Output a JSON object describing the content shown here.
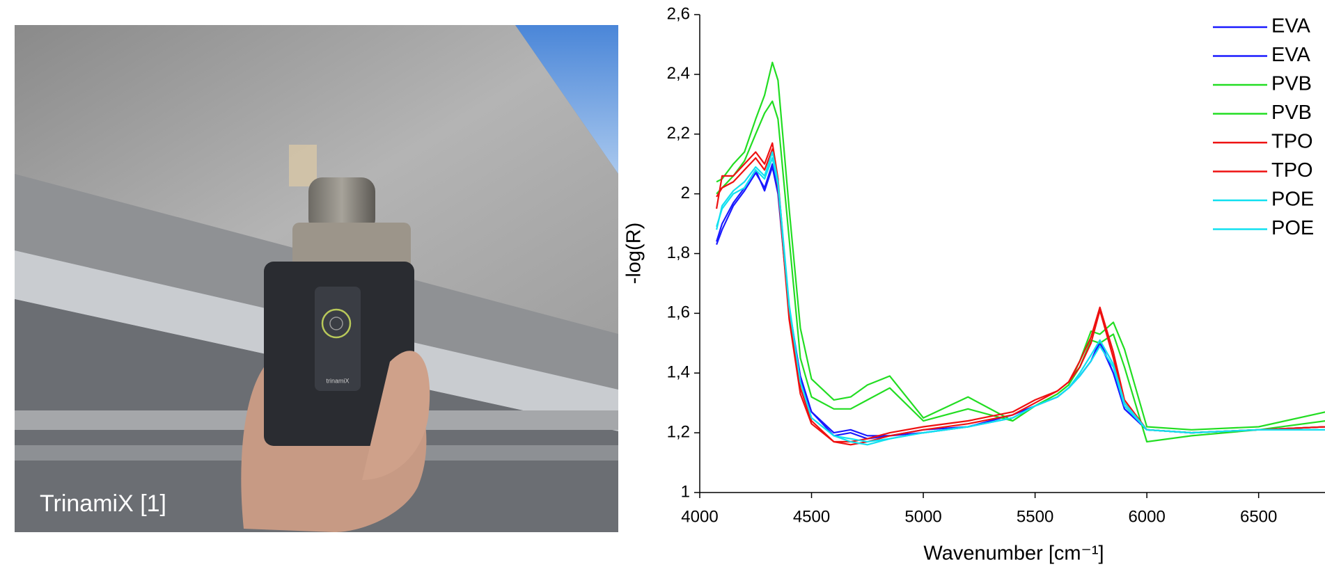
{
  "photo": {
    "caption": "TrinamiX [1]",
    "device_text": "trinamiX"
  },
  "chart_data": {
    "type": "line",
    "x_label": "Wavenumber [cm⁻¹]",
    "y_label": "-log(R)",
    "x": [
      4075,
      4100,
      4150,
      4200,
      4250,
      4290,
      4325,
      4350,
      4400,
      4450,
      4500,
      4600,
      4675,
      4750,
      4850,
      5000,
      5200,
      5400,
      5500,
      5600,
      5650,
      5700,
      5750,
      5790,
      5850,
      5900,
      6000,
      6200,
      6500,
      6800
    ],
    "xlim": [
      4000,
      6800
    ],
    "xticks": [
      4000,
      4500,
      5000,
      5500,
      6000,
      6500
    ],
    "ylim": [
      1,
      2.6
    ],
    "yticks": [
      1,
      {
        "value": 1.2,
        "label": "1,2"
      },
      {
        "value": 1.4,
        "label": "1,4"
      },
      {
        "value": 1.6,
        "label": "1,6"
      },
      {
        "value": 1.8,
        "label": "1,8"
      },
      2,
      {
        "value": 2.2,
        "label": "2,2"
      },
      {
        "value": 2.4,
        "label": "2,4"
      },
      {
        "value": 2.6,
        "label": "2,6"
      }
    ],
    "series": [
      {
        "name": "EVA",
        "color": "#1a1aff",
        "values": [
          1.84,
          1.9,
          1.97,
          2.02,
          2.08,
          2.01,
          2.09,
          2.0,
          1.6,
          1.38,
          1.27,
          1.2,
          1.21,
          1.19,
          1.19,
          1.2,
          1.22,
          1.25,
          1.29,
          1.32,
          1.35,
          1.39,
          1.44,
          1.5,
          1.4,
          1.28,
          1.21,
          1.2,
          1.21,
          1.22
        ]
      },
      {
        "name": "EVA",
        "color": "#1a1aff",
        "values": [
          1.83,
          1.88,
          1.96,
          2.01,
          2.07,
          2.02,
          2.1,
          2.02,
          1.62,
          1.39,
          1.27,
          1.19,
          1.2,
          1.18,
          1.19,
          1.21,
          1.22,
          1.26,
          1.29,
          1.32,
          1.35,
          1.39,
          1.44,
          1.51,
          1.4,
          1.28,
          1.21,
          1.2,
          1.21,
          1.22
        ]
      },
      {
        "name": "PVB",
        "color": "#22dd22",
        "values": [
          2.04,
          2.05,
          2.1,
          2.14,
          2.25,
          2.33,
          2.44,
          2.38,
          1.95,
          1.55,
          1.38,
          1.31,
          1.32,
          1.36,
          1.39,
          1.25,
          1.32,
          1.24,
          1.29,
          1.33,
          1.36,
          1.44,
          1.54,
          1.53,
          1.57,
          1.48,
          1.22,
          1.21,
          1.22,
          1.27
        ]
      },
      {
        "name": "PVB",
        "color": "#22dd22",
        "values": [
          2.0,
          2.02,
          2.06,
          2.11,
          2.2,
          2.27,
          2.31,
          2.25,
          1.85,
          1.45,
          1.32,
          1.28,
          1.28,
          1.31,
          1.35,
          1.24,
          1.28,
          1.24,
          1.29,
          1.33,
          1.36,
          1.42,
          1.51,
          1.5,
          1.53,
          1.42,
          1.17,
          1.19,
          1.21,
          1.24
        ]
      },
      {
        "name": "TPO",
        "color": "#ee1111",
        "values": [
          1.95,
          2.06,
          2.06,
          2.1,
          2.14,
          2.1,
          2.17,
          2.05,
          1.6,
          1.35,
          1.24,
          1.17,
          1.16,
          1.17,
          1.19,
          1.21,
          1.23,
          1.26,
          1.3,
          1.34,
          1.37,
          1.42,
          1.5,
          1.61,
          1.45,
          1.3,
          1.21,
          1.2,
          1.21,
          1.22
        ]
      },
      {
        "name": "TPO",
        "color": "#ee1111",
        "values": [
          1.99,
          2.02,
          2.04,
          2.08,
          2.12,
          2.08,
          2.15,
          2.02,
          1.58,
          1.33,
          1.23,
          1.17,
          1.17,
          1.18,
          1.2,
          1.22,
          1.24,
          1.27,
          1.31,
          1.34,
          1.37,
          1.44,
          1.52,
          1.62,
          1.47,
          1.31,
          1.21,
          1.2,
          1.21,
          1.22
        ]
      },
      {
        "name": "POE",
        "color": "#11e0f0",
        "values": [
          1.89,
          1.95,
          2.0,
          2.02,
          2.08,
          2.05,
          2.12,
          2.03,
          1.62,
          1.37,
          1.25,
          1.19,
          1.17,
          1.16,
          1.18,
          1.2,
          1.22,
          1.25,
          1.29,
          1.32,
          1.35,
          1.39,
          1.44,
          1.49,
          1.42,
          1.29,
          1.21,
          1.2,
          1.21,
          1.21
        ]
      },
      {
        "name": "POE",
        "color": "#11e0f0",
        "values": [
          1.88,
          1.96,
          2.01,
          2.04,
          2.09,
          2.06,
          2.14,
          2.04,
          1.63,
          1.37,
          1.25,
          1.19,
          1.18,
          1.17,
          1.18,
          1.2,
          1.22,
          1.25,
          1.29,
          1.32,
          1.35,
          1.4,
          1.46,
          1.51,
          1.43,
          1.3,
          1.21,
          1.2,
          1.21,
          1.21
        ]
      }
    ],
    "legend": "upper right"
  }
}
